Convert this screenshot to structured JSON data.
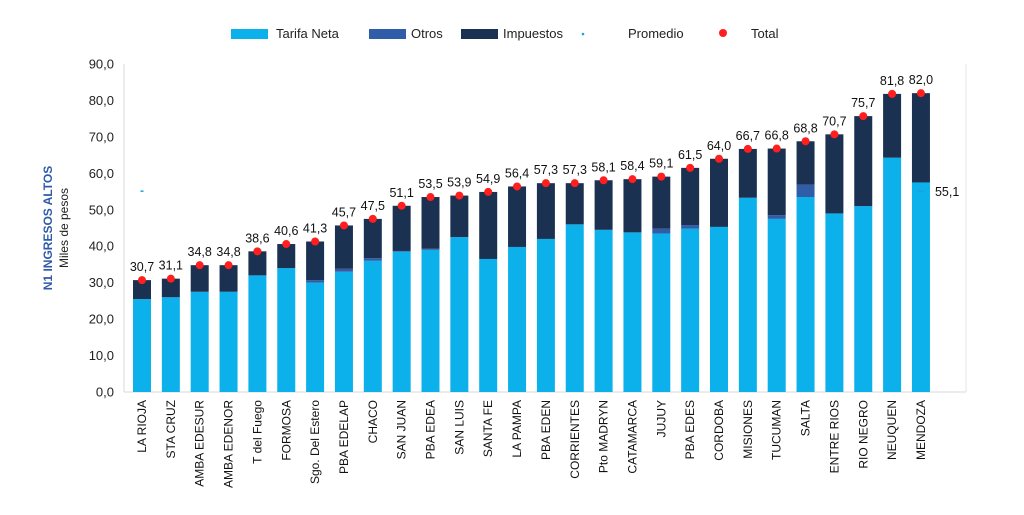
{
  "chart_data": {
    "type": "bar",
    "stacked": true,
    "ylabel": "N1 INGRESOS ALTOS",
    "ylabel_sub": "Miles de pesos",
    "ylim": [
      0,
      90
    ],
    "yticks": [
      "0,0",
      "10,0",
      "20,0",
      "30,0",
      "40,0",
      "50,0",
      "60,0",
      "70,0",
      "80,0",
      "90,0"
    ],
    "grid": false,
    "legend_position": "top",
    "categories": [
      "LA RIOJA",
      "STA CRUZ",
      "AMBA EDESUR",
      "AMBA EDENOR",
      "T del Fuego",
      "FORMOSA",
      "Sgo. Del Estero",
      "PBA EDELAP",
      "CHACO",
      "SAN JUAN",
      "PBA EDEA",
      "SAN LUIS",
      "SANTA FE",
      "LA PAMPA",
      "PBA EDEN",
      "CORRIENTES",
      "Pto MADRYN",
      "CATAMARCA",
      "JUJUY",
      "PBA EDES",
      "CORDOBA",
      "MISIONES",
      "TUCUMAN",
      "SALTA",
      "ENTRE RIOS",
      "RIO NEGRO",
      "NEUQUEN",
      "MENDOZA"
    ],
    "series": [
      {
        "name": "Tarifa Neta",
        "color": "#0cb0ea",
        "values": [
          25.5,
          26.0,
          27.5,
          27.5,
          32.0,
          34.0,
          30.0,
          33.0,
          36.0,
          38.5,
          39.0,
          42.5,
          36.5,
          39.8,
          42.0,
          46.0,
          44.5,
          43.8,
          43.5,
          44.8,
          45.3,
          53.3,
          47.5,
          53.5,
          49.0,
          51.0,
          64.3,
          57.5
        ]
      },
      {
        "name": "Otros",
        "color": "#2f5da8",
        "values": [
          0.0,
          0.0,
          0.0,
          0.0,
          0.0,
          0.0,
          0.7,
          0.8,
          0.7,
          0.2,
          0.3,
          0.0,
          0.0,
          0.0,
          0.0,
          0.0,
          0.0,
          0.0,
          1.3,
          1.0,
          0.0,
          0.0,
          1.0,
          3.4,
          0.0,
          0.0,
          0.0,
          0.0
        ]
      },
      {
        "name": "Impuestos",
        "color": "#1b3152",
        "values": [
          5.2,
          5.1,
          7.3,
          7.3,
          6.6,
          6.6,
          10.6,
          11.9,
          10.8,
          12.4,
          14.2,
          11.4,
          18.4,
          16.6,
          15.3,
          11.3,
          13.6,
          14.6,
          14.3,
          15.7,
          18.7,
          13.4,
          18.3,
          11.9,
          21.7,
          24.7,
          17.5,
          24.5
        ]
      }
    ],
    "total": {
      "name": "Total",
      "color": "#ff1f1f",
      "labels": [
        "30,7",
        "31,1",
        "34,8",
        "34,8",
        "38,6",
        "40,6",
        "41,3",
        "45,7",
        "47,5",
        "51,1",
        "53,5",
        "53,9",
        "54,9",
        "56,4",
        "57,3",
        "57,3",
        "58,1",
        "58,4",
        "59,1",
        "61,5",
        "64,0",
        "66,7",
        "66,8",
        "68,8",
        "70,7",
        "75,7",
        "81,8",
        "82,0"
      ],
      "values": [
        30.7,
        31.1,
        34.8,
        34.8,
        38.6,
        40.6,
        41.3,
        45.7,
        47.5,
        51.1,
        53.5,
        53.9,
        54.9,
        56.4,
        57.3,
        57.3,
        58.1,
        58.4,
        59.1,
        61.5,
        64.0,
        66.7,
        66.8,
        68.8,
        70.7,
        75.7,
        81.8,
        82.0
      ]
    },
    "promedio": {
      "name": "Promedio",
      "color": "#1aa3d9",
      "value": 55.1,
      "label": "55,1"
    }
  }
}
